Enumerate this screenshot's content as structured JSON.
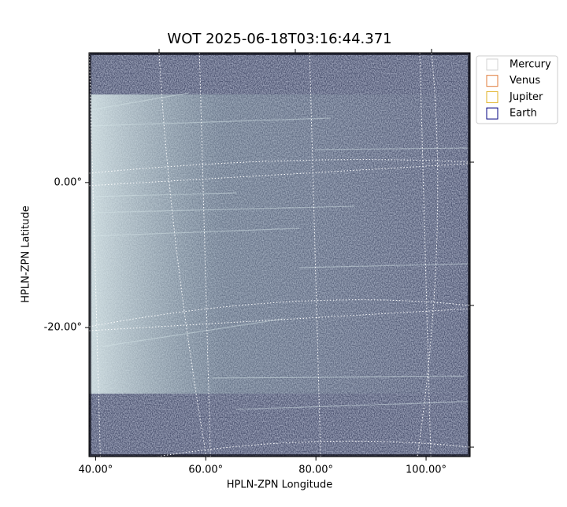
{
  "chart_data": {
    "type": "image",
    "title": "WOT 2025-06-18T03:16:44.371",
    "xlabel": "HPLN-ZPN Longitude",
    "ylabel": "HPLN-ZPN Latitude",
    "xlim": [
      38.8,
      108
    ],
    "ylim": [
      -37.8,
      17.9
    ],
    "xticks": [
      {
        "value": 40,
        "label": "40.00°"
      },
      {
        "value": 60,
        "label": "60.00°"
      },
      {
        "value": 80,
        "label": "80.00°"
      },
      {
        "value": 100,
        "label": "100.00°"
      }
    ],
    "yticks": [
      {
        "value": 0,
        "label": "0.00°"
      },
      {
        "value": -20,
        "label": "-20.00°"
      }
    ],
    "grid": true,
    "legend": "upper right",
    "series": [
      {
        "name": "Mercury",
        "color": "#d3d3d3"
      },
      {
        "name": "Venus",
        "color": "#e07b39"
      },
      {
        "name": "Jupiter",
        "color": "#e0b020"
      },
      {
        "name": "Earth",
        "color": "#000080"
      }
    ]
  }
}
